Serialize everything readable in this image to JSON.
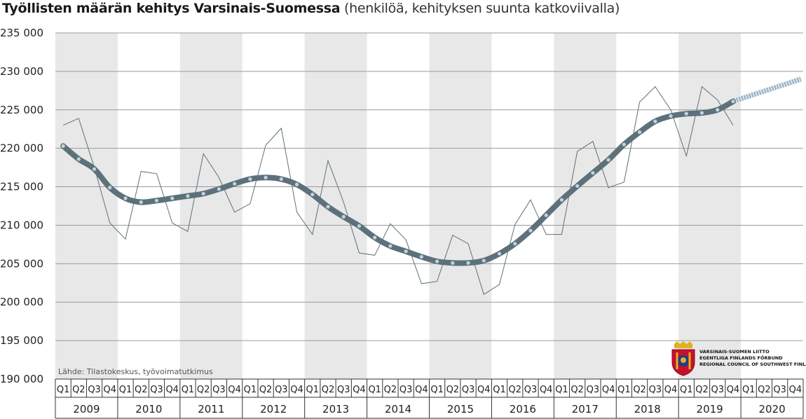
{
  "title": {
    "bold": "Työllisten määrän kehitys Varsinais-Suomessa",
    "normal": "(henkilöä, kehityksen suunta katkoviivalla)"
  },
  "source": "Lähde: Tilastokeskus, työvoimatutkimus",
  "logo": {
    "line1": "VARSINAIS-SUOMEN LIITTO",
    "line2": "EGENTLIGA FINLANDS FÖRBUND",
    "line3": "REGIONAL COUNCIL OF SOUTHWEST FINLAND"
  },
  "colors": {
    "trend": "#5d717b",
    "trend_dots": "#c2d3db",
    "actual": "#5d717b",
    "band": "#e8e8e8",
    "grid": "#9a9a9a",
    "forecast": "#9ab2c4"
  },
  "chart_data": {
    "type": "line",
    "ylim": [
      190000,
      235000
    ],
    "ytick_labels": [
      "190 000",
      "195 000",
      "200 000",
      "205 000",
      "210 000",
      "215 000",
      "220 000",
      "225 000",
      "230 000",
      "235 000"
    ],
    "yticks": [
      190000,
      195000,
      200000,
      205000,
      210000,
      215000,
      220000,
      225000,
      230000,
      235000
    ],
    "years": [
      "2009",
      "2010",
      "2011",
      "2012",
      "2013",
      "2014",
      "2015",
      "2016",
      "2017",
      "2018",
      "2019",
      "2020"
    ],
    "quarters": [
      "Q1",
      "Q2",
      "Q3",
      "Q4"
    ],
    "shaded_years": [
      "2009",
      "2011",
      "2013",
      "2015",
      "2017",
      "2019"
    ],
    "series": [
      {
        "kind": "actual",
        "values": [
          223000,
          223900,
          217500,
          210300,
          208200,
          217000,
          216700,
          210300,
          209200,
          219300,
          216200,
          211700,
          212800,
          220400,
          222600,
          211700,
          208800,
          218400,
          213000,
          206400,
          206100,
          210200,
          208100,
          202400,
          202700,
          208700,
          207600,
          201000,
          202300,
          210100,
          213300,
          208800,
          208800,
          219600,
          220900,
          214900,
          215600,
          226000,
          228000,
          225000,
          219000,
          228000,
          226300,
          223000
        ]
      },
      {
        "kind": "trend",
        "values": [
          220300,
          218600,
          217300,
          214900,
          213500,
          213000,
          213200,
          213500,
          213800,
          214100,
          214700,
          215400,
          216000,
          216200,
          216000,
          215300,
          214000,
          212400,
          211100,
          209900,
          208400,
          207300,
          206600,
          205900,
          205300,
          205100,
          205100,
          205400,
          206300,
          207600,
          209300,
          211300,
          213300,
          215100,
          216800,
          218500,
          220500,
          222100,
          223500,
          224200,
          224500,
          224600,
          225000,
          226100
        ]
      },
      {
        "kind": "forecast",
        "values": [
          226100,
          229000
        ],
        "from_index": 43,
        "to_index": 47
      }
    ]
  }
}
